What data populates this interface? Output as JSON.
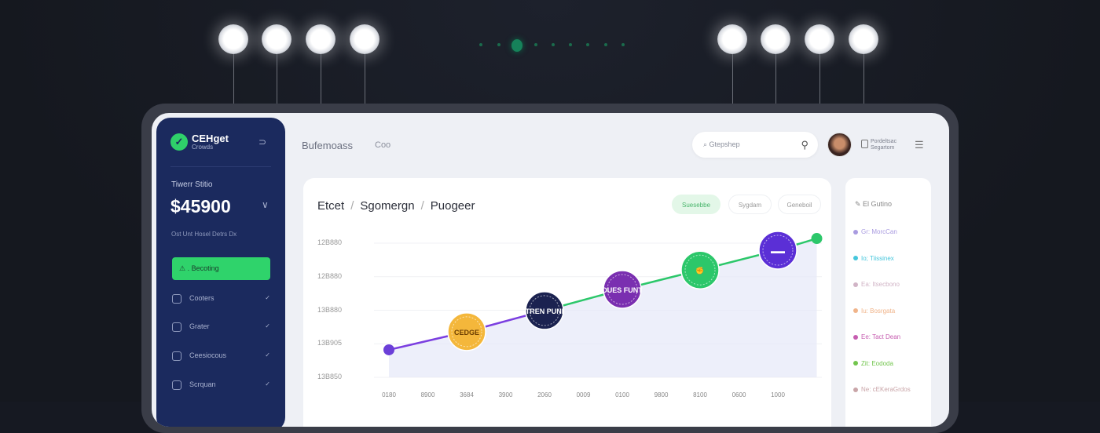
{
  "sidebar": {
    "brand": "CEНget",
    "brand_sub": "Crowds",
    "balance_label": "Tiwerr Stitio",
    "balance": "$45900",
    "balance_sub": "Ost Unt Hosel Detrs Dx",
    "active_item": "Becoting",
    "items": [
      {
        "label": "Cooters"
      },
      {
        "label": "Grater"
      },
      {
        "label": "Ceesiocous"
      },
      {
        "label": "Scrquan"
      }
    ]
  },
  "header": {
    "title": "Bufemoass",
    "subtitle": "Coo",
    "search_placeholder": "Gtepshep",
    "user_line1": "Pordeltsac",
    "user_line2": "Segartom"
  },
  "chart_card": {
    "breadcrumb": [
      "Etcet",
      "Sgomergn",
      "Puogeer"
    ],
    "pills": [
      {
        "label": "Suesebbe",
        "active": true
      },
      {
        "label": "Sygdam",
        "active": false
      },
      {
        "label": "Geneboil",
        "active": false
      }
    ]
  },
  "legend": {
    "title": "El Gutino",
    "items": [
      {
        "label": "Gr: MorcCan",
        "color": "#a99be0"
      },
      {
        "label": "Io; Tiissinex",
        "color": "#45c6dc"
      },
      {
        "label": "Ea: Itsecbono",
        "color": "#d1b4c6"
      },
      {
        "label": "Iu: Bosrgata",
        "color": "#f0b48a"
      },
      {
        "label": "Ee: Tact Dean",
        "color": "#c65db0"
      },
      {
        "label": "Zit: Eododa",
        "color": "#72c54d"
      },
      {
        "label": "Ne: cEKeraGrdos",
        "color": "#c9a5a8"
      }
    ]
  },
  "chart_data": {
    "type": "line",
    "title": "",
    "xlabel": "",
    "ylabel": "",
    "y_tick_labels": [
      "12B880",
      "12B880",
      "13B880",
      "13B905",
      "13B850"
    ],
    "x_tick_labels": [
      "0180",
      "8900",
      "3684",
      "3900",
      "2060",
      "0009",
      "0100",
      "9800",
      "8100",
      "0600",
      "1000"
    ],
    "ylim": [
      0,
      4
    ],
    "grid": true,
    "points": [
      {
        "x": 0,
        "y": 0.82,
        "marker": "small",
        "color": "#6b3fd8",
        "label": ""
      },
      {
        "x": 2,
        "y": 1.36,
        "marker": "badge",
        "color": "#f4b73b",
        "label": "CEDGE"
      },
      {
        "x": 4,
        "y": 1.99,
        "marker": "badge",
        "color": "#1b2250",
        "label": "TREN PUNI"
      },
      {
        "x": 6,
        "y": 2.62,
        "marker": "badge",
        "color": "#7a2fb0",
        "label": "DUES FUNT"
      },
      {
        "x": 8,
        "y": 3.2,
        "marker": "badge",
        "color": "#2cc76a",
        "label": "✊"
      },
      {
        "x": 10,
        "y": 3.79,
        "marker": "badge",
        "color": "#5b2fd6",
        "label": "▬▬"
      },
      {
        "x": 11,
        "y": 4.14,
        "marker": "small",
        "color": "#2cc76a",
        "label": ""
      }
    ],
    "line_colors": [
      "#7b3fe0",
      "#2cc76a"
    ],
    "fill_color": "#e6e8f8"
  },
  "colors": {
    "sidebar": "#1b2a5e",
    "accent": "#2fd36b",
    "background": "#161922"
  }
}
